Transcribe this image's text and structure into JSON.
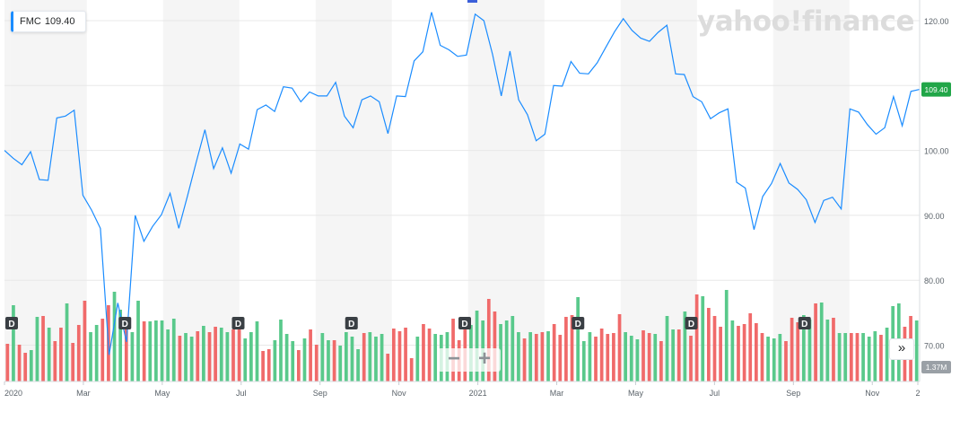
{
  "header": {
    "symbol": "FMC",
    "last_price": "109.40"
  },
  "watermark": "yahoo!finance",
  "zoom": {
    "out_label": "−",
    "in_label": "+"
  },
  "expand_label": "»",
  "chart_data": {
    "type": "line",
    "price_series": {
      "name": "FMC",
      "color": "#1a8cff",
      "values": [
        100.0,
        98.8,
        97.8,
        99.8,
        95.5,
        95.4,
        105.0,
        105.3,
        106.2,
        93.1,
        90.8,
        88.0,
        68.5,
        76.5,
        70.5,
        90.0,
        86.0,
        88.3,
        90.1,
        93.4,
        88.0,
        93.0,
        98.2,
        103.2,
        97.2,
        100.4,
        96.5,
        101.0,
        100.2,
        106.3,
        107.0,
        106.0,
        109.8,
        109.6,
        107.5,
        109.0,
        108.4,
        108.4,
        110.5,
        105.3,
        103.5,
        107.8,
        108.4,
        107.5,
        102.6,
        108.4,
        108.3,
        113.8,
        115.2,
        121.3,
        116.2,
        115.5,
        114.5,
        114.7,
        121.0,
        120.0,
        114.8,
        108.4,
        115.3,
        107.8,
        105.5,
        101.5,
        102.5,
        110.0,
        109.9,
        113.7,
        111.9,
        111.8,
        113.5,
        115.9,
        118.3,
        120.3,
        118.5,
        117.3,
        116.8,
        118.2,
        119.3,
        111.8,
        111.7,
        108.3,
        107.5,
        104.9,
        105.8,
        106.4,
        95.1,
        94.2,
        87.8,
        92.9,
        94.9,
        98.0,
        95.0,
        94.0,
        92.4,
        88.9,
        92.3,
        92.8,
        91.0,
        106.4,
        105.9,
        104.0,
        102.5,
        103.5,
        108.3,
        103.8,
        109.1,
        109.4
      ],
      "last_value": "109.40"
    },
    "volume_series": {
      "name": "Volume",
      "up_color": "#59c98b",
      "down_color": "#f06a6a",
      "values": [
        0.42,
        0.85,
        0.41,
        0.32,
        0.35,
        0.72,
        0.73,
        0.6,
        0.45,
        0.6,
        0.87,
        0.43,
        0.63,
        0.9,
        0.55,
        0.63,
        0.7,
        0.85,
        1.0,
        0.8,
        0.7,
        0.55,
        0.9,
        0.67,
        0.67,
        0.68,
        0.68,
        0.58,
        0.7,
        0.51,
        0.54,
        0.5,
        0.56,
        0.62,
        0.55,
        0.61,
        0.6,
        0.55,
        0.58,
        0.6,
        0.48,
        0.55,
        0.67,
        0.34,
        0.36,
        0.46,
        0.69,
        0.53,
        0.45,
        0.35,
        0.48,
        0.58,
        0.41,
        0.54,
        0.46,
        0.46,
        0.4,
        0.55,
        0.5,
        0.36,
        0.54,
        0.55,
        0.5,
        0.53,
        0.31,
        0.59,
        0.56,
        0.6,
        0.26,
        0.5,
        0.64,
        0.59,
        0.53,
        0.52,
        0.55,
        0.7,
        0.46,
        0.61,
        0.63,
        0.79,
        0.68,
        0.92,
        0.78,
        0.64,
        0.68,
        0.73,
        0.55,
        0.48,
        0.55,
        0.53,
        0.55,
        0.56,
        0.64,
        0.52,
        0.72,
        0.74,
        0.94,
        0.45,
        0.55,
        0.5,
        0.59,
        0.53,
        0.54,
        0.75,
        0.55,
        0.51,
        0.47,
        0.57,
        0.54,
        0.53,
        0.45,
        0.73,
        0.58,
        0.58,
        0.78,
        0.51,
        0.97,
        0.95,
        0.82,
        0.73,
        0.61,
        1.02,
        0.68,
        0.62,
        0.64,
        0.76,
        0.65,
        0.54,
        0.5,
        0.48,
        0.53,
        0.45,
        0.71,
        0.66,
        0.74,
        0.69,
        0.87,
        0.88,
        0.69,
        0.71,
        0.54,
        0.54,
        0.54,
        0.54,
        0.54,
        0.5,
        0.56,
        0.52,
        0.6,
        0.84,
        0.87,
        0.61,
        0.73,
        0.68
      ],
      "last_value_label": "1.37M"
    },
    "volume_directions": "dudduududduddduudduuduuduuuuuduududduudduuudduuuududduuduuuuduuudddddudduuuddduuudduuuududdudddduuuddddduuudduduududduddduuddddduuuddduuduuduudduuuduuud",
    "dividends": {
      "label": "D",
      "positions": [
        0.0,
        0.125,
        0.25,
        0.375,
        0.5,
        0.625,
        0.75,
        0.875
      ]
    },
    "x_ticks": [
      "2020",
      "Mar",
      "May",
      "Jul",
      "Sep",
      "Nov",
      "2021",
      "Mar",
      "May",
      "Jul",
      "Sep",
      "Nov",
      "2"
    ],
    "y_ticks": [
      "120.00",
      "110.00",
      "100.00",
      "90.00",
      "80.00",
      "70.00"
    ],
    "y_tick_values": [
      120,
      110,
      100,
      90,
      80,
      70
    ],
    "ylim": [
      64.9,
      122.6
    ],
    "grid": true,
    "shaded_bands": true
  }
}
